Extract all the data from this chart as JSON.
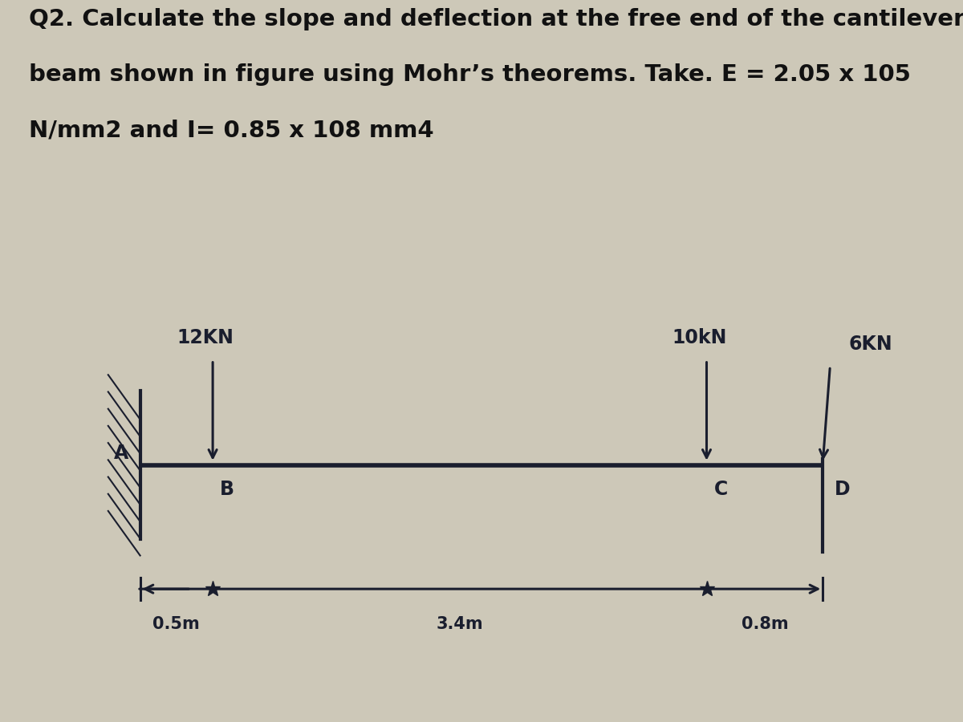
{
  "title_line1": "Q2. Calculate the slope and deflection at the free end of the cantilever",
  "title_line2": "beam shown in figure using Mohr’s theorems. Take. E = 2.05 x 105",
  "title_line3": "N/mm2 and I= 0.85 x 108 mm4",
  "bg_color_top": "#cdc8b8",
  "bg_color_diagram": "#2c2520",
  "draw_color": "#1a1e2e",
  "text_color_title": "#111111",
  "points_x": [
    0.0,
    0.5,
    3.9,
    4.7
  ],
  "dim_AB": "0.5m",
  "dim_BC": "3.4m",
  "dim_CD": "0.8m",
  "load_B": "12KN",
  "load_C": "10kN",
  "load_D": "6KN",
  "title_fontsize": 21,
  "label_fontsize": 17
}
